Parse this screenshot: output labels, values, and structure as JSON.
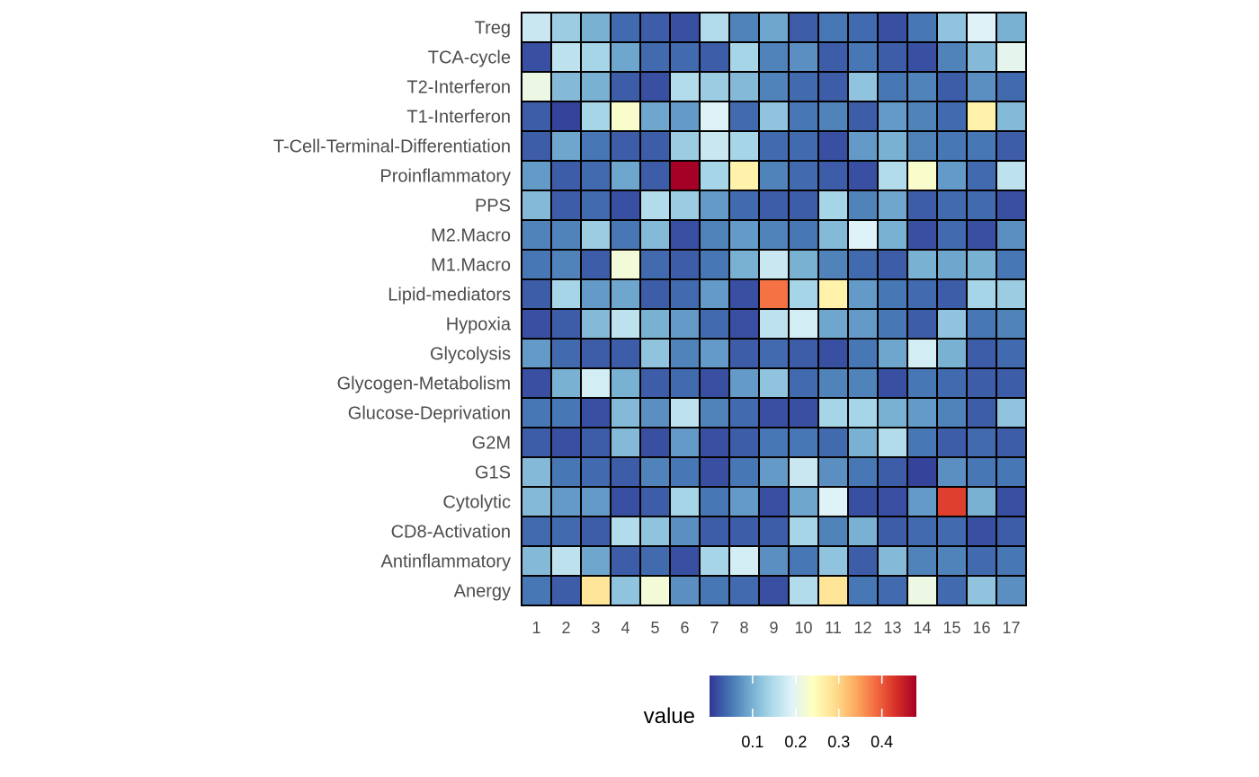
{
  "chart_data": {
    "type": "heatmap",
    "title": "",
    "xlabel": "",
    "ylabel": "",
    "rows": [
      "Treg",
      "TCA-cycle",
      "T2-Interferon",
      "T1-Interferon",
      "T-Cell-Terminal-Differentiation",
      "Proinflammatory",
      "PPS",
      "M2.Macro",
      "M1.Macro",
      "Lipid-mediators",
      "Hypoxia",
      "Glycolysis",
      "Glycogen-Metabolism",
      "Glucose-Deprivation",
      "G2M",
      "G1S",
      "Cytolytic",
      "CD8-Activation",
      "Antinflammatory",
      "Anergy"
    ],
    "columns": [
      "1",
      "2",
      "3",
      "4",
      "5",
      "6",
      "7",
      "8",
      "9",
      "10",
      "11",
      "12",
      "13",
      "14",
      "15",
      "16",
      "17"
    ],
    "values": [
      [
        0.17,
        0.13,
        0.1,
        0.04,
        0.03,
        0.02,
        0.15,
        0.06,
        0.09,
        0.03,
        0.05,
        0.04,
        0.02,
        0.05,
        0.12,
        0.19,
        0.1
      ],
      [
        0.02,
        0.16,
        0.14,
        0.09,
        0.04,
        0.04,
        0.03,
        0.14,
        0.06,
        0.07,
        0.03,
        0.05,
        0.03,
        0.02,
        0.06,
        0.11,
        0.2
      ],
      [
        0.21,
        0.11,
        0.1,
        0.03,
        0.02,
        0.15,
        0.13,
        0.11,
        0.06,
        0.04,
        0.03,
        0.12,
        0.05,
        0.06,
        0.03,
        0.07,
        0.04
      ],
      [
        0.03,
        0.01,
        0.14,
        0.23,
        0.09,
        0.08,
        0.19,
        0.04,
        0.12,
        0.05,
        0.06,
        0.03,
        0.08,
        0.06,
        0.04,
        0.26,
        0.11
      ],
      [
        0.03,
        0.09,
        0.05,
        0.03,
        0.03,
        0.13,
        0.17,
        0.14,
        0.04,
        0.04,
        0.02,
        0.08,
        0.1,
        0.06,
        0.05,
        0.05,
        0.03
      ],
      [
        0.08,
        0.03,
        0.04,
        0.09,
        0.03,
        0.48,
        0.14,
        0.26,
        0.06,
        0.04,
        0.03,
        0.02,
        0.15,
        0.23,
        0.08,
        0.04,
        0.16
      ],
      [
        0.11,
        0.03,
        0.04,
        0.02,
        0.15,
        0.13,
        0.08,
        0.04,
        0.03,
        0.03,
        0.14,
        0.06,
        0.09,
        0.03,
        0.04,
        0.04,
        0.02
      ],
      [
        0.06,
        0.06,
        0.13,
        0.05,
        0.11,
        0.02,
        0.06,
        0.08,
        0.06,
        0.05,
        0.11,
        0.19,
        0.1,
        0.02,
        0.04,
        0.02,
        0.07
      ],
      [
        0.05,
        0.06,
        0.03,
        0.22,
        0.04,
        0.03,
        0.05,
        0.1,
        0.17,
        0.1,
        0.06,
        0.04,
        0.03,
        0.1,
        0.09,
        0.1,
        0.05
      ],
      [
        0.03,
        0.14,
        0.08,
        0.09,
        0.03,
        0.04,
        0.08,
        0.02,
        0.38,
        0.14,
        0.26,
        0.08,
        0.05,
        0.04,
        0.03,
        0.14,
        0.13
      ],
      [
        0.02,
        0.03,
        0.11,
        0.16,
        0.1,
        0.08,
        0.04,
        0.02,
        0.16,
        0.18,
        0.09,
        0.08,
        0.05,
        0.03,
        0.12,
        0.05,
        0.06
      ],
      [
        0.08,
        0.04,
        0.03,
        0.03,
        0.12,
        0.06,
        0.08,
        0.03,
        0.04,
        0.03,
        0.02,
        0.05,
        0.09,
        0.18,
        0.1,
        0.03,
        0.04
      ],
      [
        0.02,
        0.1,
        0.18,
        0.1,
        0.03,
        0.04,
        0.02,
        0.08,
        0.12,
        0.04,
        0.06,
        0.06,
        0.02,
        0.05,
        0.04,
        0.03,
        0.03
      ],
      [
        0.05,
        0.05,
        0.02,
        0.11,
        0.07,
        0.16,
        0.06,
        0.04,
        0.02,
        0.02,
        0.14,
        0.14,
        0.1,
        0.08,
        0.06,
        0.03,
        0.12
      ],
      [
        0.03,
        0.02,
        0.03,
        0.11,
        0.02,
        0.08,
        0.02,
        0.03,
        0.05,
        0.05,
        0.04,
        0.1,
        0.15,
        0.05,
        0.03,
        0.04,
        0.03
      ],
      [
        0.11,
        0.05,
        0.04,
        0.03,
        0.06,
        0.05,
        0.02,
        0.05,
        0.08,
        0.17,
        0.07,
        0.05,
        0.03,
        0.01,
        0.07,
        0.05,
        0.05
      ],
      [
        0.11,
        0.08,
        0.08,
        0.02,
        0.03,
        0.14,
        0.05,
        0.08,
        0.02,
        0.09,
        0.19,
        0.02,
        0.02,
        0.08,
        0.42,
        0.1,
        0.02
      ],
      [
        0.04,
        0.04,
        0.03,
        0.15,
        0.12,
        0.07,
        0.03,
        0.03,
        0.03,
        0.14,
        0.06,
        0.1,
        0.03,
        0.04,
        0.04,
        0.02,
        0.03
      ],
      [
        0.11,
        0.16,
        0.09,
        0.03,
        0.04,
        0.02,
        0.14,
        0.18,
        0.07,
        0.05,
        0.12,
        0.03,
        0.11,
        0.06,
        0.06,
        0.04,
        0.05
      ],
      [
        0.05,
        0.03,
        0.28,
        0.12,
        0.22,
        0.07,
        0.05,
        0.04,
        0.02,
        0.15,
        0.28,
        0.05,
        0.04,
        0.21,
        0.04,
        0.12,
        0.07
      ]
    ],
    "color_scale": {
      "name": "RdYlBu (reversed)",
      "domain": [
        0.0,
        0.48
      ],
      "colors": [
        "#313695",
        "#4575b4",
        "#74add1",
        "#abd9e9",
        "#e0f3f8",
        "#ffffbf",
        "#fee090",
        "#fdae61",
        "#f46d43",
        "#d73027",
        "#a50026"
      ]
    },
    "legend": {
      "title": "value",
      "ticks": [
        0.1,
        0.2,
        0.3,
        0.4
      ],
      "tick_labels": [
        "0.1",
        "0.2",
        "0.3",
        "0.4"
      ],
      "position": "bottom"
    }
  }
}
